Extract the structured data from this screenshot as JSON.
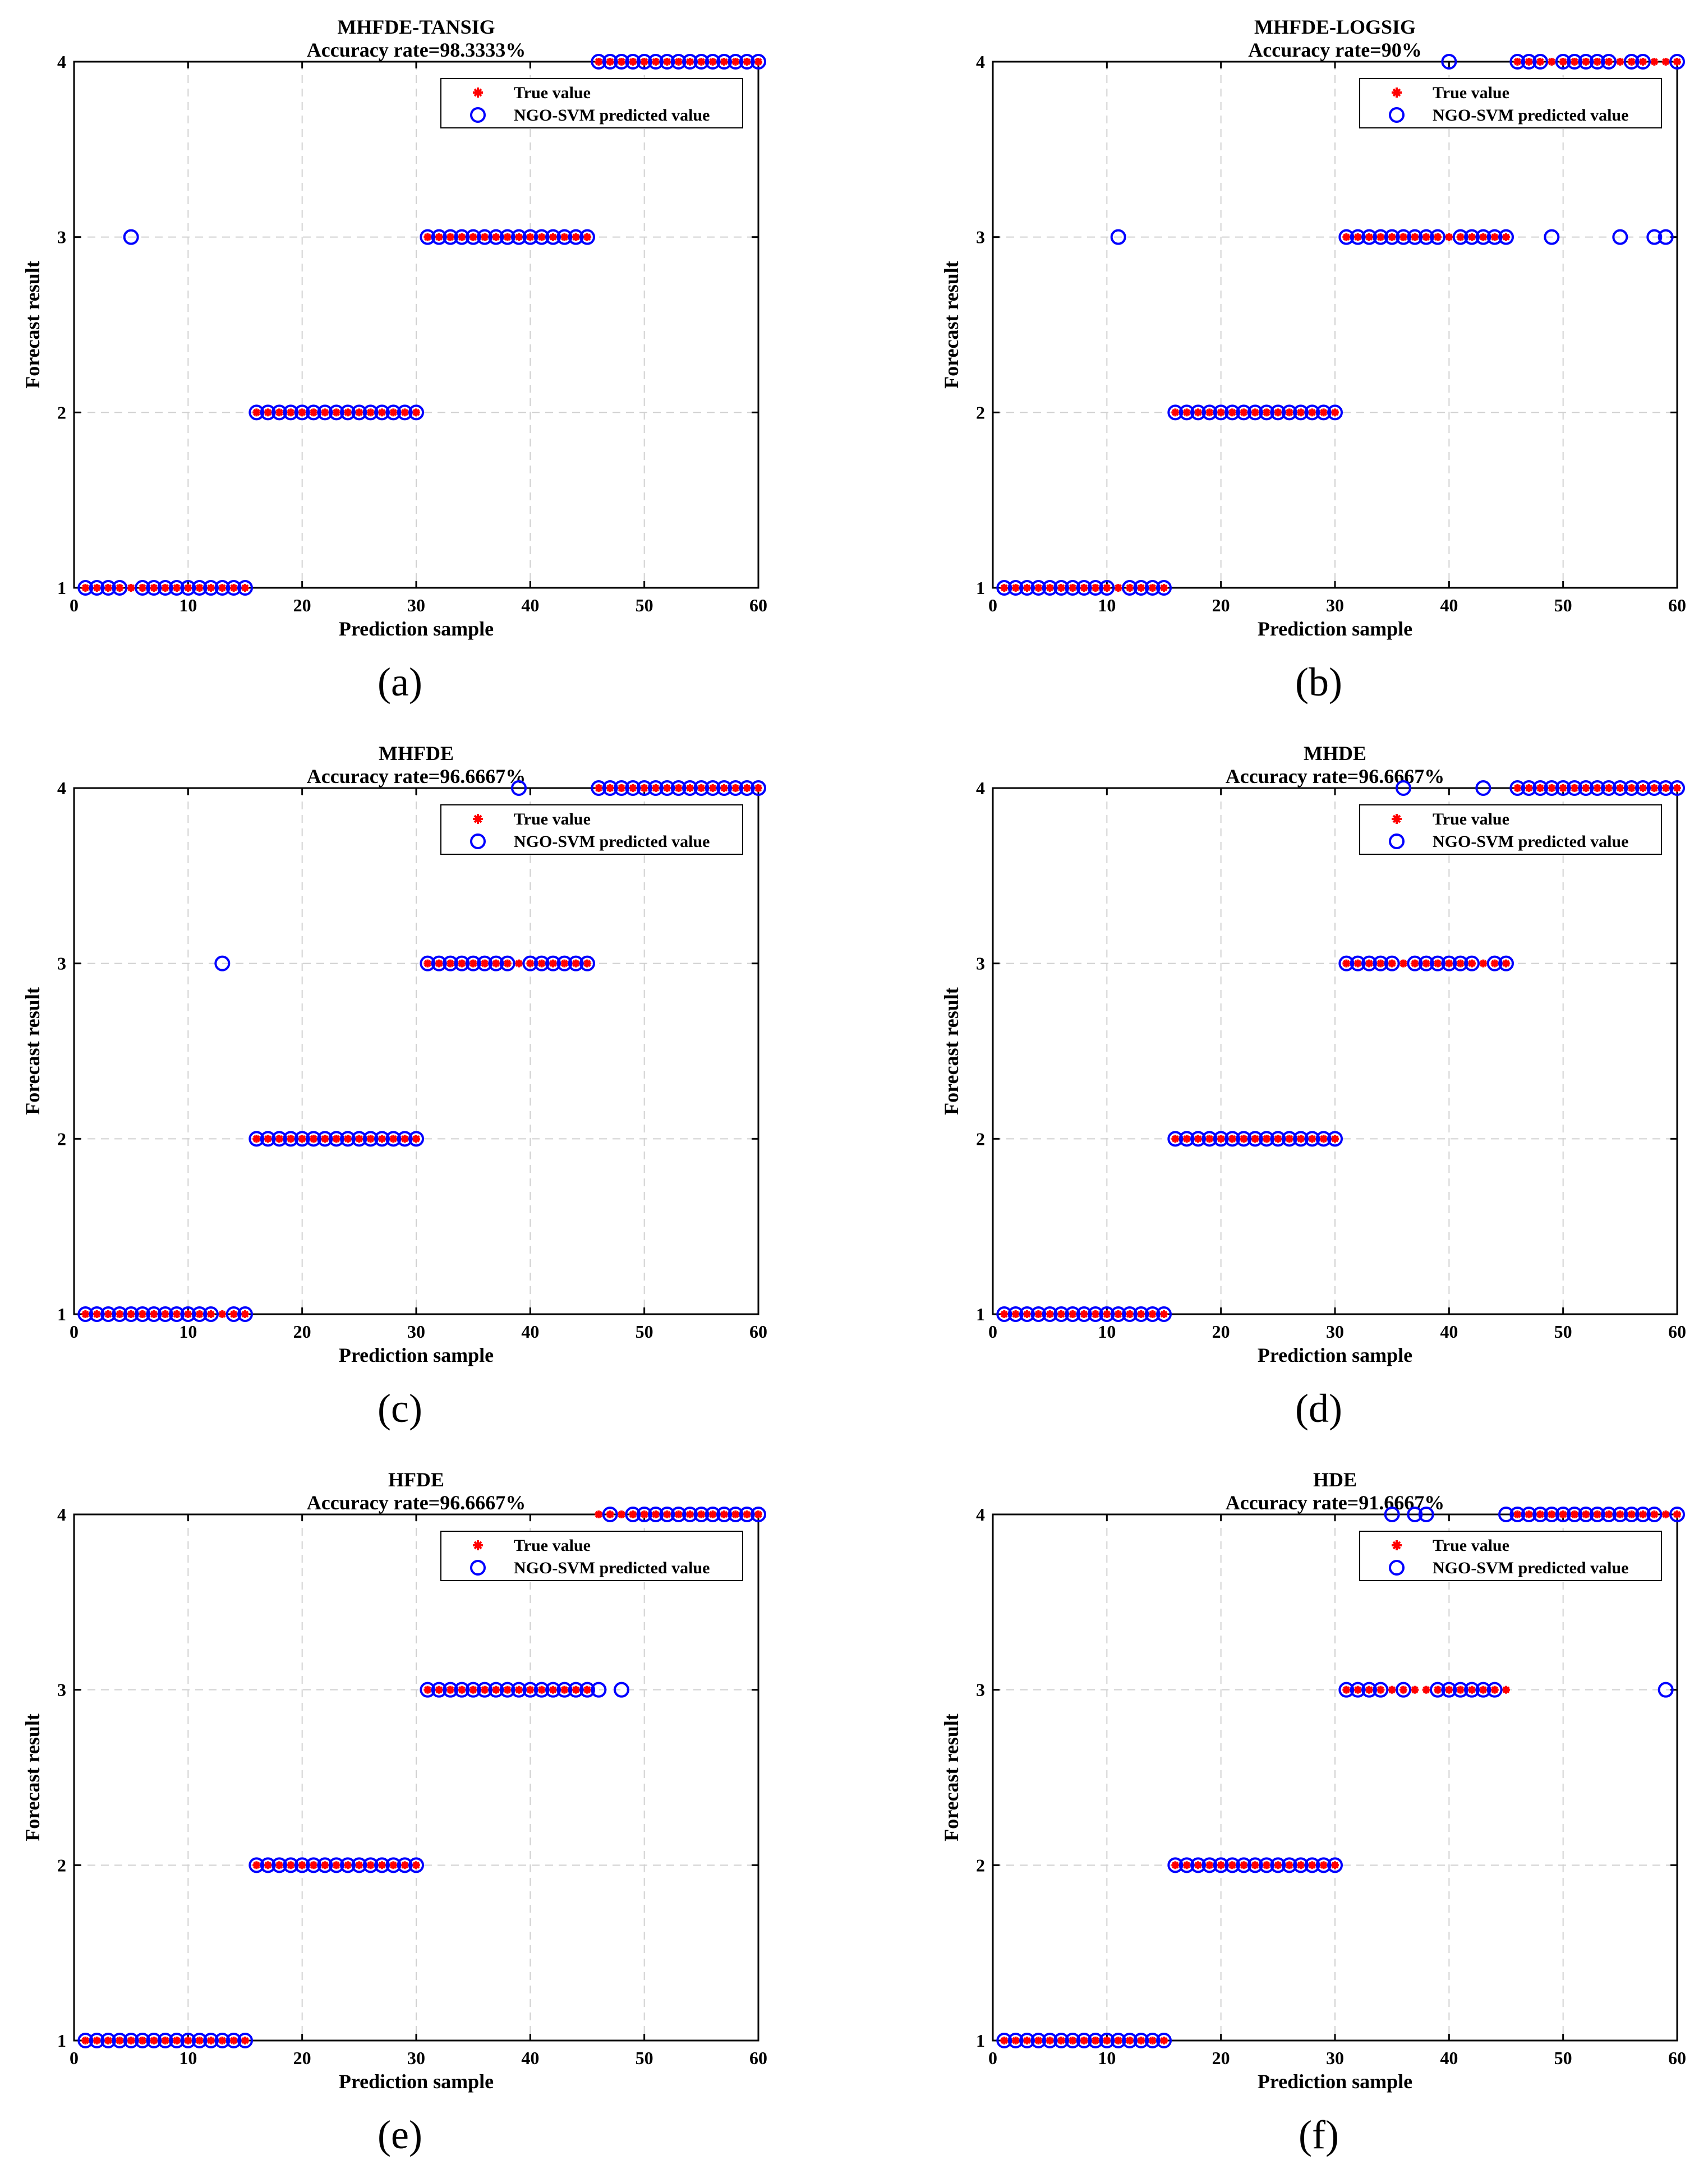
{
  "colors": {
    "true_marker": "#ff0000",
    "pred_marker": "#0000ff",
    "grid": "#d0d0d0"
  },
  "legend": {
    "true_label": "True value",
    "pred_label": "NGO-SVM predicted value"
  },
  "chart_data": [
    {
      "panel": "(a)",
      "type": "scatter",
      "title": "MHFDE-TANSIG",
      "subtitle": "Accuracy rate=98.3333%",
      "xlabel": "Prediction sample",
      "ylabel": "Forecast result",
      "xlim": [
        0,
        60
      ],
      "ylim": [
        1,
        4
      ],
      "xticks": [
        0,
        10,
        20,
        30,
        40,
        50,
        60
      ],
      "yticks": [
        1,
        2,
        3,
        4
      ],
      "grid": true,
      "legend_position": "top-right",
      "true_values": [
        1,
        1,
        1,
        1,
        1,
        1,
        1,
        1,
        1,
        1,
        1,
        1,
        1,
        1,
        1,
        2,
        2,
        2,
        2,
        2,
        2,
        2,
        2,
        2,
        2,
        2,
        2,
        2,
        2,
        2,
        3,
        3,
        3,
        3,
        3,
        3,
        3,
        3,
        3,
        3,
        3,
        3,
        3,
        3,
        3,
        4,
        4,
        4,
        4,
        4,
        4,
        4,
        4,
        4,
        4,
        4,
        4,
        4,
        4,
        4
      ],
      "predicted_values": [
        1,
        1,
        1,
        1,
        3,
        1,
        1,
        1,
        1,
        1,
        1,
        1,
        1,
        1,
        1,
        2,
        2,
        2,
        2,
        2,
        2,
        2,
        2,
        2,
        2,
        2,
        2,
        2,
        2,
        2,
        3,
        3,
        3,
        3,
        3,
        3,
        3,
        3,
        3,
        3,
        3,
        3,
        3,
        3,
        3,
        4,
        4,
        4,
        4,
        4,
        4,
        4,
        4,
        4,
        4,
        4,
        4,
        4,
        4,
        4
      ]
    },
    {
      "panel": "(b)",
      "type": "scatter",
      "title": "MHFDE-LOGSIG",
      "subtitle": "Accuracy rate=90%",
      "xlabel": "Prediction sample",
      "ylabel": "Forecast result",
      "xlim": [
        0,
        60
      ],
      "ylim": [
        1,
        4
      ],
      "xticks": [
        0,
        10,
        20,
        30,
        40,
        50,
        60
      ],
      "yticks": [
        1,
        2,
        3,
        4
      ],
      "grid": true,
      "legend_position": "top-right",
      "true_values": [
        1,
        1,
        1,
        1,
        1,
        1,
        1,
        1,
        1,
        1,
        1,
        1,
        1,
        1,
        1,
        2,
        2,
        2,
        2,
        2,
        2,
        2,
        2,
        2,
        2,
        2,
        2,
        2,
        2,
        2,
        3,
        3,
        3,
        3,
        3,
        3,
        3,
        3,
        3,
        3,
        3,
        3,
        3,
        3,
        3,
        4,
        4,
        4,
        4,
        4,
        4,
        4,
        4,
        4,
        4,
        4,
        4,
        4,
        4,
        4
      ],
      "predicted_values": [
        1,
        1,
        1,
        1,
        1,
        1,
        1,
        1,
        1,
        1,
        3,
        1,
        1,
        1,
        1,
        2,
        2,
        2,
        2,
        2,
        2,
        2,
        2,
        2,
        2,
        2,
        2,
        2,
        2,
        2,
        3,
        3,
        3,
        3,
        3,
        3,
        3,
        3,
        3,
        4,
        3,
        3,
        3,
        3,
        3,
        4,
        4,
        4,
        3,
        4,
        4,
        4,
        4,
        4,
        3,
        4,
        4,
        3,
        3,
        4
      ]
    },
    {
      "panel": "(c)",
      "type": "scatter",
      "title": "MHFDE",
      "subtitle": "Accuracy rate=96.6667%",
      "xlabel": "Prediction sample",
      "ylabel": "Forecast result",
      "xlim": [
        0,
        60
      ],
      "ylim": [
        1,
        4
      ],
      "xticks": [
        0,
        10,
        20,
        30,
        40,
        50,
        60
      ],
      "yticks": [
        1,
        2,
        3,
        4
      ],
      "grid": true,
      "legend_position": "top-right",
      "true_values": [
        1,
        1,
        1,
        1,
        1,
        1,
        1,
        1,
        1,
        1,
        1,
        1,
        1,
        1,
        1,
        2,
        2,
        2,
        2,
        2,
        2,
        2,
        2,
        2,
        2,
        2,
        2,
        2,
        2,
        2,
        3,
        3,
        3,
        3,
        3,
        3,
        3,
        3,
        3,
        3,
        3,
        3,
        3,
        3,
        3,
        4,
        4,
        4,
        4,
        4,
        4,
        4,
        4,
        4,
        4,
        4,
        4,
        4,
        4,
        4
      ],
      "predicted_values": [
        1,
        1,
        1,
        1,
        1,
        1,
        1,
        1,
        1,
        1,
        1,
        1,
        3,
        1,
        1,
        2,
        2,
        2,
        2,
        2,
        2,
        2,
        2,
        2,
        2,
        2,
        2,
        2,
        2,
        2,
        3,
        3,
        3,
        3,
        3,
        3,
        3,
        3,
        4,
        3,
        3,
        3,
        3,
        3,
        3,
        4,
        4,
        4,
        4,
        4,
        4,
        4,
        4,
        4,
        4,
        4,
        4,
        4,
        4,
        4
      ]
    },
    {
      "panel": "(d)",
      "type": "scatter",
      "title": "MHDE",
      "subtitle": "Accuracy rate=96.6667%",
      "xlabel": "Prediction sample",
      "ylabel": "Forecast result",
      "xlim": [
        0,
        60
      ],
      "ylim": [
        1,
        4
      ],
      "xticks": [
        0,
        10,
        20,
        30,
        40,
        50,
        60
      ],
      "yticks": [
        1,
        2,
        3,
        4
      ],
      "grid": true,
      "legend_position": "top-right",
      "true_values": [
        1,
        1,
        1,
        1,
        1,
        1,
        1,
        1,
        1,
        1,
        1,
        1,
        1,
        1,
        1,
        2,
        2,
        2,
        2,
        2,
        2,
        2,
        2,
        2,
        2,
        2,
        2,
        2,
        2,
        2,
        3,
        3,
        3,
        3,
        3,
        3,
        3,
        3,
        3,
        3,
        3,
        3,
        3,
        3,
        3,
        4,
        4,
        4,
        4,
        4,
        4,
        4,
        4,
        4,
        4,
        4,
        4,
        4,
        4,
        4
      ],
      "predicted_values": [
        1,
        1,
        1,
        1,
        1,
        1,
        1,
        1,
        1,
        1,
        1,
        1,
        1,
        1,
        1,
        2,
        2,
        2,
        2,
        2,
        2,
        2,
        2,
        2,
        2,
        2,
        2,
        2,
        2,
        2,
        3,
        3,
        3,
        3,
        3,
        4,
        3,
        3,
        3,
        3,
        3,
        3,
        4,
        3,
        3,
        4,
        4,
        4,
        4,
        4,
        4,
        4,
        4,
        4,
        4,
        4,
        4,
        4,
        4,
        4
      ]
    },
    {
      "panel": "(e)",
      "type": "scatter",
      "title": "HFDE",
      "subtitle": "Accuracy rate=96.6667%",
      "xlabel": "Prediction sample",
      "ylabel": "Forecast result",
      "xlim": [
        0,
        60
      ],
      "ylim": [
        1,
        4
      ],
      "xticks": [
        0,
        10,
        20,
        30,
        40,
        50,
        60
      ],
      "yticks": [
        1,
        2,
        3,
        4
      ],
      "grid": true,
      "legend_position": "top-right",
      "true_values": [
        1,
        1,
        1,
        1,
        1,
        1,
        1,
        1,
        1,
        1,
        1,
        1,
        1,
        1,
        1,
        2,
        2,
        2,
        2,
        2,
        2,
        2,
        2,
        2,
        2,
        2,
        2,
        2,
        2,
        2,
        3,
        3,
        3,
        3,
        3,
        3,
        3,
        3,
        3,
        3,
        3,
        3,
        3,
        3,
        3,
        4,
        4,
        4,
        4,
        4,
        4,
        4,
        4,
        4,
        4,
        4,
        4,
        4,
        4,
        4
      ],
      "predicted_values": [
        1,
        1,
        1,
        1,
        1,
        1,
        1,
        1,
        1,
        1,
        1,
        1,
        1,
        1,
        1,
        2,
        2,
        2,
        2,
        2,
        2,
        2,
        2,
        2,
        2,
        2,
        2,
        2,
        2,
        2,
        3,
        3,
        3,
        3,
        3,
        3,
        3,
        3,
        3,
        3,
        3,
        3,
        3,
        3,
        3,
        3,
        4,
        3,
        4,
        4,
        4,
        4,
        4,
        4,
        4,
        4,
        4,
        4,
        4,
        4
      ]
    },
    {
      "panel": "(f)",
      "type": "scatter",
      "title": "HDE",
      "subtitle": "Accuracy rate=91.6667%",
      "xlabel": "Prediction sample",
      "ylabel": "Forecast result",
      "xlim": [
        0,
        60
      ],
      "ylim": [
        1,
        4
      ],
      "xticks": [
        0,
        10,
        20,
        30,
        40,
        50,
        60
      ],
      "yticks": [
        1,
        2,
        3,
        4
      ],
      "grid": true,
      "legend_position": "top-right",
      "true_values": [
        1,
        1,
        1,
        1,
        1,
        1,
        1,
        1,
        1,
        1,
        1,
        1,
        1,
        1,
        1,
        2,
        2,
        2,
        2,
        2,
        2,
        2,
        2,
        2,
        2,
        2,
        2,
        2,
        2,
        2,
        3,
        3,
        3,
        3,
        3,
        3,
        3,
        3,
        3,
        3,
        3,
        3,
        3,
        3,
        3,
        4,
        4,
        4,
        4,
        4,
        4,
        4,
        4,
        4,
        4,
        4,
        4,
        4,
        4,
        4
      ],
      "predicted_values": [
        1,
        1,
        1,
        1,
        1,
        1,
        1,
        1,
        1,
        1,
        1,
        1,
        1,
        1,
        1,
        2,
        2,
        2,
        2,
        2,
        2,
        2,
        2,
        2,
        2,
        2,
        2,
        2,
        2,
        2,
        3,
        3,
        3,
        3,
        4,
        3,
        4,
        4,
        3,
        3,
        3,
        3,
        3,
        3,
        4,
        4,
        4,
        4,
        4,
        4,
        4,
        4,
        4,
        4,
        4,
        4,
        4,
        4,
        3,
        4
      ]
    }
  ]
}
